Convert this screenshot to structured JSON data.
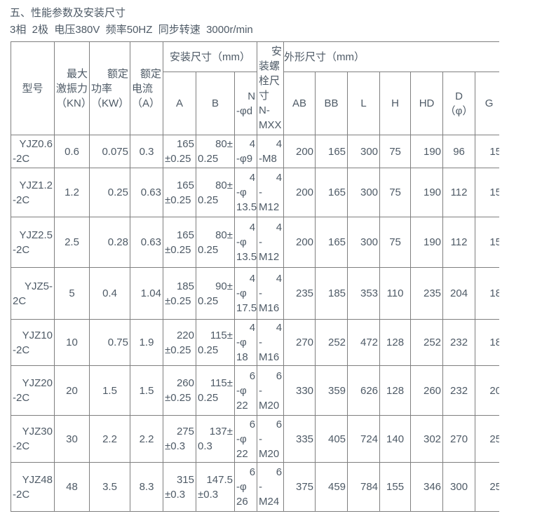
{
  "page": {
    "title": "五、性能参数及安装尺寸",
    "subtitle": "3相  2极  电压380V  频率50HZ  同步转速  3000r/min"
  },
  "colors": {
    "text": "#4e5a66",
    "border": "#7f7f7f",
    "background": "#ffffff"
  },
  "table": {
    "group_headers": {
      "install": "安装尺寸（mm）",
      "outline": "外形尺寸（mm）"
    },
    "headers": {
      "model": [
        "型号"
      ],
      "force": [
        "最大",
        "激振力",
        "（KN）"
      ],
      "power": [
        "额定",
        "功率",
        "（KW）"
      ],
      "current": [
        "额定",
        "电流",
        "（A）"
      ],
      "A": [
        "A"
      ],
      "B": [
        "B"
      ],
      "nphid": [
        "N",
        "-φd"
      ],
      "bolt": [
        "安",
        "装螺",
        "栓尺",
        "寸",
        "N-",
        "MXX"
      ],
      "AB": [
        "AB"
      ],
      "BB": [
        "BB"
      ],
      "L": [
        "L"
      ],
      "H": [
        "H"
      ],
      "HD": [
        "HD"
      ],
      "D": [
        "D",
        "（φ）"
      ],
      "G": [
        "G"
      ]
    },
    "rows": [
      [
        [
          "YJZ0.6",
          "-2C"
        ],
        [
          "0.6"
        ],
        [
          "0.075"
        ],
        [
          "0.3"
        ],
        [
          "165",
          "±0.25"
        ],
        [
          "80±",
          "0.25"
        ],
        [
          "4",
          "-φ9"
        ],
        [
          "4",
          "-M8"
        ],
        [
          "200"
        ],
        [
          "165"
        ],
        [
          "300"
        ],
        [
          "75"
        ],
        [
          "190"
        ],
        [
          "96"
        ],
        [
          "15"
        ]
      ],
      [
        [
          "YJZ1.2",
          "-2C"
        ],
        [
          "1.2"
        ],
        [
          "0.25"
        ],
        [
          "0.63"
        ],
        [
          "165",
          "±0.25"
        ],
        [
          "80±",
          "0.25"
        ],
        [
          "4",
          "-φ",
          "13.5"
        ],
        [
          "4",
          "-",
          "M12"
        ],
        [
          "200"
        ],
        [
          "165"
        ],
        [
          "300"
        ],
        [
          "75"
        ],
        [
          "190"
        ],
        [
          "112"
        ],
        [
          "15"
        ]
      ],
      [
        [
          "YJZ2.5",
          "-2C"
        ],
        [
          "2.5"
        ],
        [
          "0.28"
        ],
        [
          "0.63"
        ],
        [
          "165",
          "±0.25"
        ],
        [
          "80±",
          "0.25"
        ],
        [
          "4",
          "-φ",
          "13.5"
        ],
        [
          "4",
          "-",
          "M12"
        ],
        [
          "200"
        ],
        [
          "165"
        ],
        [
          "300"
        ],
        [
          "75"
        ],
        [
          "190"
        ],
        [
          "112"
        ],
        [
          "15"
        ]
      ],
      [
        [
          "YJZ5-",
          "2C"
        ],
        [
          "5"
        ],
        [
          "0.4"
        ],
        [
          "1.04"
        ],
        [
          "185",
          "±0.25"
        ],
        [
          "90±",
          "0.25"
        ],
        [
          "4",
          "-φ",
          "17.5"
        ],
        [
          "4",
          "-",
          "M16"
        ],
        [
          "235"
        ],
        [
          "185"
        ],
        [
          "353"
        ],
        [
          "110"
        ],
        [
          "235"
        ],
        [
          "204"
        ],
        [
          "18"
        ]
      ],
      [
        [
          "YJZ10",
          "-2C"
        ],
        [
          "10"
        ],
        [
          "0.75"
        ],
        [
          "1.9"
        ],
        [
          "220",
          "±0.25"
        ],
        [
          "115±",
          "0.25"
        ],
        [
          "4",
          "-φ",
          "18"
        ],
        [
          "4",
          "-",
          "M16"
        ],
        [
          "270"
        ],
        [
          "252"
        ],
        [
          "472"
        ],
        [
          "128"
        ],
        [
          "252"
        ],
        [
          "232"
        ],
        [
          "18"
        ]
      ],
      [
        [
          "YJZ20",
          "-2C"
        ],
        [
          "20"
        ],
        [
          "1.5"
        ],
        [
          "1.5"
        ],
        [
          "260",
          "±0.25"
        ],
        [
          "115±",
          "0.25"
        ],
        [
          "6",
          "-φ",
          "22"
        ],
        [
          "6",
          "-",
          "M20"
        ],
        [
          "330"
        ],
        [
          "359"
        ],
        [
          "626"
        ],
        [
          "128"
        ],
        [
          "260"
        ],
        [
          "232"
        ],
        [
          "20"
        ]
      ],
      [
        [
          "YJZ30",
          "-2C"
        ],
        [
          "30"
        ],
        [
          "2.2"
        ],
        [
          "2.2"
        ],
        [
          "275",
          "±0.3"
        ],
        [
          "137±",
          "0.3"
        ],
        [
          "6",
          "-φ",
          "22"
        ],
        [
          "6",
          "-",
          "M20"
        ],
        [
          "335"
        ],
        [
          "405"
        ],
        [
          "724"
        ],
        [
          "140"
        ],
        [
          "302"
        ],
        [
          "270"
        ],
        [
          "25"
        ]
      ],
      [
        [
          "YJZ48",
          "-2C"
        ],
        [
          "48"
        ],
        [
          "3.5"
        ],
        [
          "8.3"
        ],
        [
          "315",
          "±0.3"
        ],
        [
          "147.5",
          "±0.3"
        ],
        [
          "6",
          "-φ",
          "26"
        ],
        [
          "6",
          "-",
          "M24"
        ],
        [
          "375"
        ],
        [
          "459"
        ],
        [
          "784"
        ],
        [
          "155"
        ],
        [
          "346"
        ],
        [
          "300"
        ],
        [
          "25"
        ]
      ]
    ]
  }
}
